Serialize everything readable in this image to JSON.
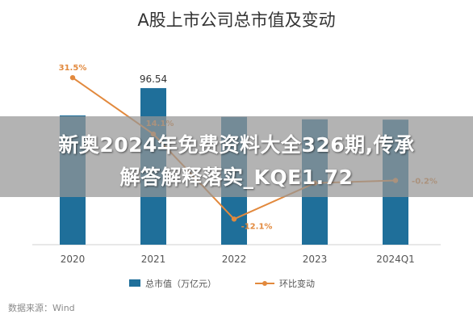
{
  "chart_data": {
    "type": "bar",
    "title": "A股上市公司总市值及变动",
    "categories": [
      "2020",
      "2021",
      "2022",
      "2023",
      "2024Q1"
    ],
    "series": [
      {
        "name": "总市值（万亿元）",
        "type": "bar",
        "axis": "left",
        "values": [
          79.7,
          96.54,
          78.8,
          77.3,
          77.1
        ],
        "data_labels": [
          null,
          "96.54",
          null,
          null,
          null
        ]
      },
      {
        "name": "环比变动",
        "type": "line",
        "axis": "right",
        "unit": "%",
        "values": [
          31.5,
          14.1,
          -12.1,
          -1.0,
          -0.2
        ],
        "data_labels": [
          "31.5%",
          "14.1%",
          "-12.1%",
          null,
          "-0.2%"
        ]
      }
    ],
    "ylim_left": [
      0,
      120
    ],
    "ylim_right": [
      -20,
      40
    ],
    "grid": false,
    "legend_position": "bottom",
    "colors": {
      "bar": "#1f6f9a",
      "line": "#e2893d",
      "axis": "#d0d0d0",
      "text": "#555555"
    }
  },
  "overlay": {
    "line1": "新奥2024年免费资料大全326期,传承",
    "line2": "解答解释落实_KQE1.72"
  },
  "source": "数据来源：Wind"
}
